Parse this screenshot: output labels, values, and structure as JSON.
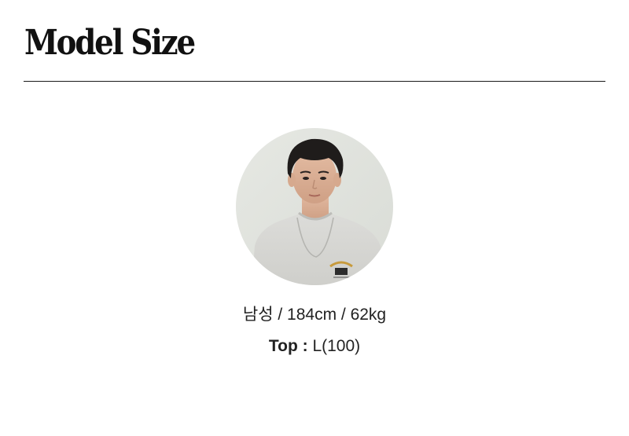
{
  "header": {
    "title": "Model Size"
  },
  "model": {
    "photo_icon": "model-portrait",
    "body_info": "남성 / 184cm / 62kg",
    "top_label": "Top :",
    "top_size": "L(100)"
  }
}
